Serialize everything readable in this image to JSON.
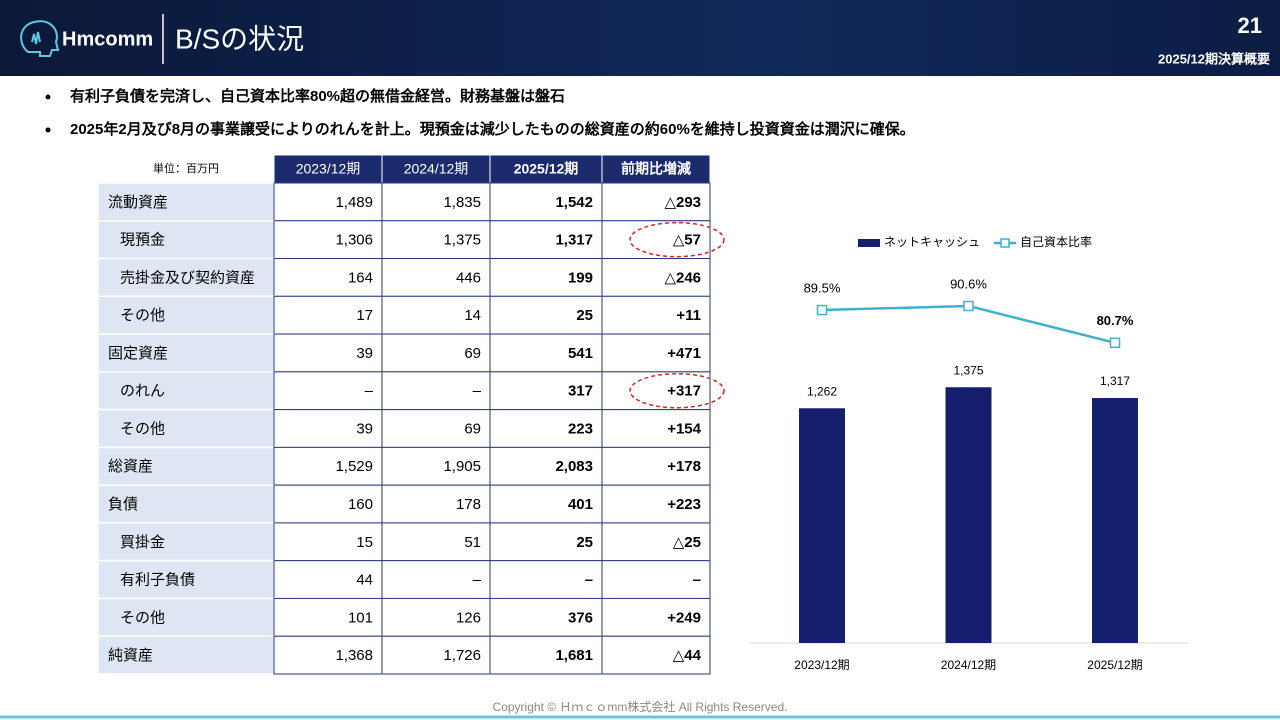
{
  "header": {
    "logo": "Hmcomm",
    "title": "B/Sの状況",
    "page": "21",
    "subtitle": "2025/12期決算概要"
  },
  "bullets": [
    "有利子負債を完済し、自己資本比率80%超の無借金経営。財務基盤は盤石",
    "2025年2月及び8月の事業譲受によりのれんを計上。現預金は減少したものの総資産の約60%を維持し投資資金は潤沢に確保。"
  ],
  "table": {
    "unit": "単位：百万円",
    "columns": [
      "2023/12期",
      "2024/12期",
      "2025/12期",
      "前期比増減"
    ],
    "rows": [
      {
        "label": "流動資産",
        "indent": false,
        "cells": [
          "1,489",
          "1,835",
          "1,542",
          "△293"
        ]
      },
      {
        "label": "現預金",
        "indent": true,
        "circled": true,
        "cells": [
          "1,306",
          "1,375",
          "1,317",
          "△57"
        ]
      },
      {
        "label": "売掛金及び契約資産",
        "indent": true,
        "cells": [
          "164",
          "446",
          "199",
          "△246"
        ]
      },
      {
        "label": "その他",
        "indent": true,
        "cells": [
          "17",
          "14",
          "25",
          "+11"
        ]
      },
      {
        "label": "固定資産",
        "indent": false,
        "cells": [
          "39",
          "69",
          "541",
          "+471"
        ]
      },
      {
        "label": "のれん",
        "indent": true,
        "circled": true,
        "cells": [
          "–",
          "–",
          "317",
          "+317"
        ]
      },
      {
        "label": "その他",
        "indent": true,
        "cells": [
          "39",
          "69",
          "223",
          "+154"
        ]
      },
      {
        "label": "総資産",
        "indent": false,
        "cells": [
          "1,529",
          "1,905",
          "2,083",
          "+178"
        ]
      },
      {
        "label": "負債",
        "indent": false,
        "cells": [
          "160",
          "178",
          "401",
          "+223"
        ]
      },
      {
        "label": "買掛金",
        "indent": true,
        "cells": [
          "15",
          "51",
          "25",
          "△25"
        ]
      },
      {
        "label": "有利子負債",
        "indent": true,
        "cells": [
          "44",
          "–",
          "–",
          "–"
        ]
      },
      {
        "label": "その他",
        "indent": true,
        "cells": [
          "101",
          "126",
          "376",
          "+249"
        ]
      },
      {
        "label": "純資産",
        "indent": false,
        "cells": [
          "1,368",
          "1,726",
          "1,681",
          "△44"
        ]
      }
    ]
  },
  "chart_data": {
    "type": "bar",
    "categories": [
      "2023/12期",
      "2024/12期",
      "2025/12期"
    ],
    "series": [
      {
        "name": "ネットキャッシュ",
        "type": "bar",
        "color": "#151f6d",
        "values": [
          1262,
          1375,
          1317
        ],
        "value_labels": [
          "1,262",
          "1,375",
          "1,317"
        ]
      },
      {
        "name": "自己資本比率",
        "type": "line",
        "color": "#3fb0d0",
        "axis": "y2",
        "values": [
          89.5,
          90.6,
          80.7
        ],
        "value_labels": [
          "89.5%",
          "90.6%",
          "80.7%"
        ]
      }
    ],
    "ylim": [
      0,
      2000
    ],
    "y2lim": [
      0,
      100
    ],
    "legend": "top"
  },
  "footer": "Copyright © Ｈｍｃｏmm株式会社 All Rights Reserved."
}
